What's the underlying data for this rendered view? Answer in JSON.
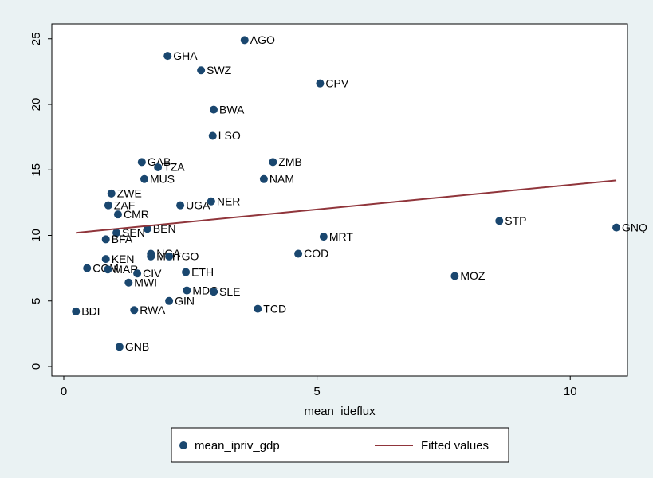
{
  "chart_data": {
    "type": "scatter",
    "x_label": "mean_ideflux",
    "xlim": [
      -0.236,
      11.13
    ],
    "ylim": [
      -0.73,
      26.14
    ],
    "xticks": [
      0,
      5,
      10
    ],
    "yticks": [
      0,
      5,
      10,
      15,
      20,
      25
    ],
    "grid": false,
    "legend": "bottom",
    "series": [
      {
        "name": "mean_ipriv_gdp",
        "type": "scatter",
        "color": "#1a476f",
        "labels": [
          "AGO",
          "GHA",
          "SWZ",
          "CPV",
          "BWA",
          "LSO",
          "GAB",
          "TZA",
          "ZMB",
          "NAM",
          "MUS",
          "ZWE",
          "NER",
          "UGA",
          "ZAF",
          "CMR",
          "STP",
          "GNQ",
          "BEN",
          "SEN",
          "BFA",
          "MRT",
          "COD",
          "NGA",
          "MLI",
          "TGO",
          "KEN",
          "COM",
          "MAR",
          "CIV",
          "ETH",
          "MOZ",
          "MWI",
          "MDG",
          "SLE",
          "GIN",
          "TCD",
          "RWA",
          "BDI",
          "GNB"
        ],
        "x": [
          3.57,
          2.05,
          2.71,
          5.06,
          2.96,
          2.94,
          1.54,
          1.86,
          4.13,
          3.95,
          1.59,
          0.94,
          2.91,
          2.3,
          0.88,
          1.07,
          8.6,
          10.91,
          1.65,
          1.04,
          0.83,
          5.13,
          4.63,
          1.72,
          1.72,
          2.08,
          0.83,
          0.46,
          0.87,
          1.45,
          2.41,
          7.72,
          1.28,
          2.43,
          2.96,
          2.08,
          3.83,
          1.39,
          0.24,
          1.1
        ],
        "values": [
          24.9,
          23.7,
          22.6,
          21.6,
          19.6,
          17.6,
          15.6,
          15.2,
          15.6,
          14.3,
          14.3,
          13.2,
          12.6,
          12.3,
          12.3,
          11.6,
          11.1,
          10.6,
          10.5,
          10.2,
          9.7,
          9.9,
          8.6,
          8.6,
          8.4,
          8.4,
          8.2,
          7.5,
          7.4,
          7.1,
          7.2,
          6.9,
          6.4,
          5.8,
          5.7,
          5.0,
          4.4,
          4.3,
          4.2,
          1.5
        ]
      },
      {
        "name": "Fitted values",
        "type": "line",
        "color": "#90353b",
        "x": [
          0.24,
          10.91
        ],
        "values": [
          10.2,
          14.2
        ]
      }
    ]
  }
}
